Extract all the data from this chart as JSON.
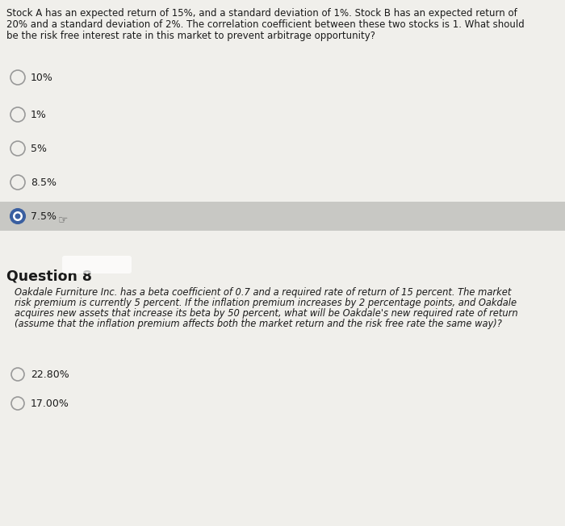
{
  "bg_color": "#e0e0dc",
  "top_bg": "#f0efeb",
  "selected_row_bg": "#c8c8c4",
  "q7_text_line1": "Stock A has an expected return of 15%, and a standard deviation of 1%. Stock B has an expected return of",
  "q7_text_line2": "20% and a standard deviation of 2%. The correlation coefficient between these two stocks is 1. What should",
  "q7_text_line3": "be the risk free interest rate in this market to prevent arbitrage opportunity?",
  "q7_options": [
    "10%",
    "1%",
    "5%",
    "8.5%",
    "7.5%"
  ],
  "q7_selected": 4,
  "q8_label": "Question 8",
  "q8_text_line1": "Oakdale Furniture Inc. has a beta coefficient of 0.7 and a required rate of return of 15 percent. The market",
  "q8_text_line2": "risk premium is currently 5 percent. If the inflation premium increases by 2 percentage points, and Oakdale",
  "q8_text_line3": "acquires new assets that increase its beta by 50 percent, what will be Oakdale's new required rate of return",
  "q8_text_line4": "(assume that the inflation premium affects both the market return and the risk free rate the same way)?",
  "q8_options": [
    "22.80%",
    "17.00%"
  ],
  "q8_selected": -1,
  "selected_color": "#3a5fa0",
  "unselected_color": "#999999",
  "text_color": "#1a1a1a",
  "body_fontsize": 8.5,
  "option_fontsize": 9.0,
  "q8_label_fontsize": 12.5,
  "paragraph_fontsize": 8.5
}
